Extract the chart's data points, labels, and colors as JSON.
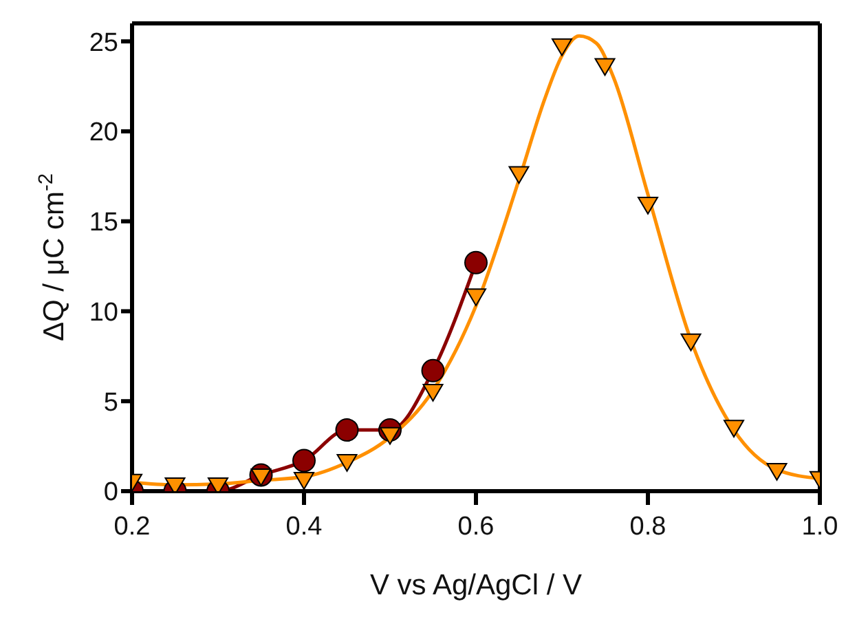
{
  "chart_data": {
    "type": "line",
    "xlabel": "V vs Ag/AgCl / V",
    "ylabel": "ΔQ / μC cm$^{-2}$",
    "xlim": [
      0.2,
      1.0
    ],
    "xticks": [
      {
        "value": 0.2,
        "label": "0.2"
      },
      {
        "value": 0.4,
        "label": "0.4"
      },
      {
        "value": 0.6,
        "label": "0.6"
      },
      {
        "value": 0.8,
        "label": "0.8"
      },
      {
        "value": 1.0,
        "label": "1.0"
      }
    ],
    "ylim": [
      0,
      26
    ],
    "yticks": [
      0,
      5,
      10,
      15,
      20,
      25
    ],
    "grid": false,
    "legend": false,
    "series": [
      {
        "type": "line",
        "color": "#8b0000",
        "marker": "circle",
        "x": [
          0.2,
          0.25,
          0.3,
          0.35,
          0.4,
          0.45,
          0.5,
          0.55,
          0.6
        ],
        "values": [
          0,
          0,
          0,
          0.9,
          1.7,
          3.4,
          3.4,
          6.7,
          12.7
        ]
      },
      {
        "type": "scatter",
        "color": "#ff9000",
        "marker": "triangle",
        "x": [
          0.2,
          0.25,
          0.3,
          0.35,
          0.4,
          0.45,
          0.5,
          0.55,
          0.6,
          0.65,
          0.7,
          0.75,
          0.8,
          0.85,
          0.9,
          0.95,
          1.0
        ],
        "values": [
          0.5,
          0.3,
          0.3,
          0.8,
          0.6,
          1.6,
          3.1,
          5.5,
          10.8,
          17.6,
          24.7,
          23.6,
          15.9,
          8.3,
          3.5,
          1.1,
          0.65
        ]
      },
      {
        "type": "line",
        "color": "#ff9000",
        "marker": "none",
        "x": [
          0.2,
          0.25,
          0.3,
          0.35,
          0.4,
          0.45,
          0.5,
          0.55,
          0.6,
          0.65,
          0.68,
          0.7,
          0.72,
          0.74,
          0.76,
          0.8,
          0.85,
          0.9,
          0.95,
          1.0
        ],
        "values": [
          0.5,
          0.35,
          0.4,
          0.6,
          0.8,
          1.6,
          3.0,
          5.6,
          10.3,
          17.3,
          21.8,
          24.2,
          25.3,
          24.9,
          23.0,
          16.5,
          8.4,
          3.4,
          1.2,
          0.7
        ]
      }
    ]
  }
}
